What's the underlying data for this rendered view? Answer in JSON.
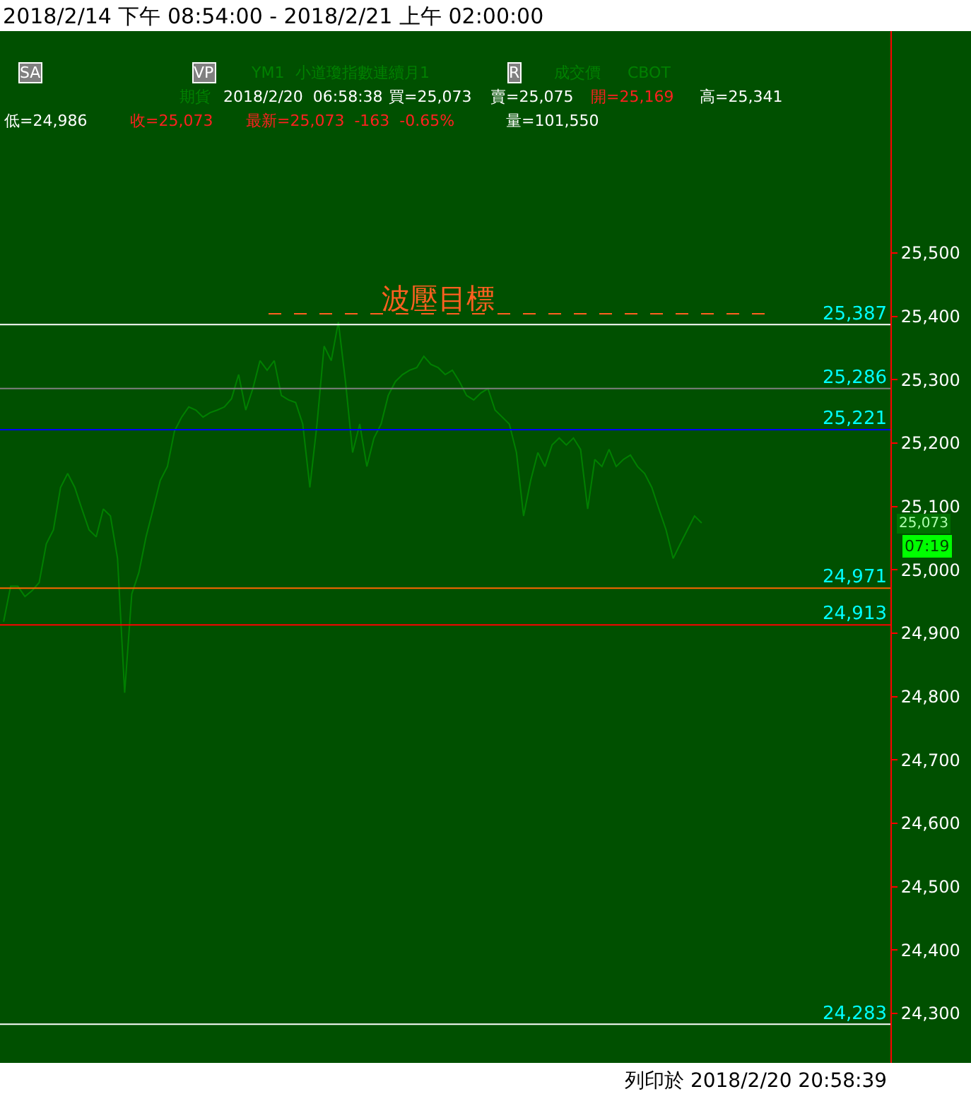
{
  "chart_data": {
    "type": "line",
    "title": "2018/2/14 下午 08:54:00 - 2018/2/21 上午 02:00:00",
    "categories": [
      null,
      null,
      null,
      null,
      null,
      null,
      null,
      null,
      null,
      null,
      null,
      null,
      null,
      null,
      null,
      null,
      null,
      null,
      null,
      null,
      null,
      null,
      null,
      null,
      null,
      null,
      null,
      null,
      null,
      null,
      null,
      null,
      null,
      null,
      null,
      null,
      null,
      null,
      null,
      null,
      null,
      null,
      null,
      null,
      null,
      null,
      null,
      null,
      null,
      null,
      null,
      null,
      null,
      null,
      null,
      null,
      null,
      null,
      null,
      null,
      null,
      null,
      null,
      null,
      null,
      null,
      null,
      null,
      null,
      null,
      null,
      null,
      null,
      null,
      null,
      null,
      null,
      null,
      null,
      null,
      null,
      null,
      null,
      null,
      null,
      null,
      null,
      null,
      null,
      null,
      null,
      null,
      null,
      null,
      null,
      null,
      null,
      null,
      null,
      null,
      null,
      null,
      null,
      null,
      null,
      null,
      null,
      null,
      null,
      null,
      null,
      null,
      null,
      null,
      null,
      null,
      null,
      null,
      null,
      null,
      null,
      null,
      null,
      null,
      null
    ],
    "series": [
      {
        "color": "#008000",
        "values": [
          24918,
          24974,
          24974,
          24958,
          24967,
          24980,
          25041,
          25063,
          25130,
          25152,
          25130,
          25096,
          25063,
          25052,
          25096,
          25085,
          25018,
          24806,
          24962,
          24996,
          25052,
          25096,
          25141,
          25163,
          25219,
          25241,
          25257,
          25252,
          25241,
          25248,
          25252,
          25257,
          25270,
          25308,
          25252,
          25286,
          25330,
          25315,
          25330,
          25275,
          25268,
          25264,
          25230,
          25130,
          25230,
          25353,
          25330,
          25391,
          25297,
          25185,
          25230,
          25163,
          25208,
          25230,
          25275,
          25297,
          25308,
          25315,
          25319,
          25337,
          25324,
          25319,
          25308,
          25315,
          25297,
          25275,
          25268,
          25279,
          25286,
          25252,
          25241,
          25230,
          25185,
          25085,
          25141,
          25185,
          25163,
          25197,
          25208,
          25197,
          25208,
          25190,
          25096,
          25174,
          25163,
          25190,
          25163,
          25174,
          25181,
          25163,
          25152,
          25130,
          25096,
          25063,
          25018,
          25041,
          25063,
          25085,
          25074,
          null,
          null,
          null,
          null,
          null,
          null,
          null,
          null,
          null,
          null,
          null,
          null,
          null,
          null,
          null,
          null,
          null,
          null,
          null,
          null,
          null,
          null,
          null,
          null,
          null,
          null
        ]
      }
    ],
    "ylim": [
      24222,
      25850
    ],
    "yticks": [
      {
        "value": 24300,
        "label": "24,300"
      },
      {
        "value": 24400,
        "label": "24,400"
      },
      {
        "value": 24500,
        "label": "24,500"
      },
      {
        "value": 24600,
        "label": "24,600"
      },
      {
        "value": 24700,
        "label": "24,700"
      },
      {
        "value": 24800,
        "label": "24,800"
      },
      {
        "value": 24900,
        "label": "24,900"
      },
      {
        "value": 25000,
        "label": "25,000"
      },
      {
        "value": 25100,
        "label": "25,100"
      },
      {
        "value": 25200,
        "label": "25,200"
      },
      {
        "value": 25300,
        "label": "25,300"
      },
      {
        "value": 25400,
        "label": "25,400"
      },
      {
        "value": 25500,
        "label": "25,500"
      }
    ],
    "tick_labels": "y",
    "ref_lines": [
      {
        "axis": "y",
        "value": 25404,
        "label": "波壓目標",
        "color": "#ff6020",
        "line_style": "dashed"
      },
      {
        "axis": "y",
        "value": 25387,
        "label": "25,387",
        "color": "#ffffff"
      },
      {
        "axis": "y",
        "value": 25286,
        "label": "25,286",
        "color": "#808080"
      },
      {
        "axis": "y",
        "value": 25221,
        "label": "25,221",
        "color": "#0000ff"
      },
      {
        "axis": "y",
        "value": 24971,
        "label": "24,971",
        "color": "#ff6600"
      },
      {
        "axis": "y",
        "value": 24913,
        "label": "24,913",
        "color": "#ff0000"
      },
      {
        "axis": "y",
        "value": 24283,
        "label": "24,283",
        "color": "#ffffff"
      }
    ],
    "annotations": [
      "SA",
      "VP",
      "YM1",
      "小道瓊指數連續月1",
      "R",
      "成交價",
      "CBOT",
      "期貨",
      "2018/2/20  06:58:38",
      "買=25,073",
      "賣=25,075",
      "開=25,169",
      "高=25,341",
      "低=24,986",
      "收=25,073",
      "最新=25,073  -163  -0.65%",
      "量=101,550",
      "列印於 2018/2/20 20:58:39",
      "25,073",
      "07:19"
    ],
    "grid": false
  }
}
